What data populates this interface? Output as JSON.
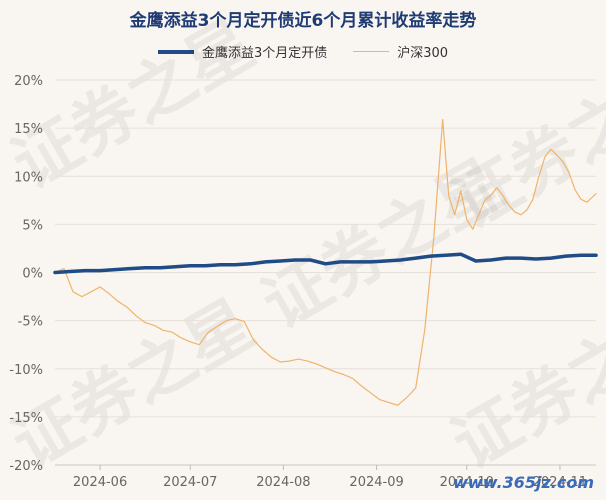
{
  "chart_data": {
    "type": "line",
    "title": "金鹰添益3个月定开债近6个月累计收益率走势",
    "ylabel": "",
    "xlabel": "",
    "ylim": [
      -20,
      20
    ],
    "y_ticks": [
      "20%",
      "15%",
      "10%",
      "5%",
      "0%",
      "-5%",
      "-10%",
      "-15%",
      "-20%"
    ],
    "x_ticks": [
      "2024-06",
      "2024-07",
      "2024-08",
      "2024-09",
      "2024-10",
      "2024-11"
    ],
    "x_tick_days": [
      15,
      45,
      76,
      107,
      137,
      168
    ],
    "legend_position": "top-center",
    "grid": true,
    "series": [
      {
        "name": "金鹰添益3个月定开债",
        "color": "#1f4b86",
        "x": [
          0,
          5,
          10,
          15,
          20,
          25,
          30,
          35,
          40,
          45,
          50,
          55,
          60,
          65,
          70,
          75,
          80,
          85,
          90,
          95,
          100,
          105,
          110,
          115,
          120,
          125,
          130,
          135,
          140,
          145,
          150,
          155,
          160,
          165,
          170,
          175,
          180
        ],
        "y": [
          0.0,
          0.1,
          0.2,
          0.2,
          0.3,
          0.4,
          0.5,
          0.5,
          0.6,
          0.7,
          0.7,
          0.8,
          0.8,
          0.9,
          1.1,
          1.2,
          1.3,
          1.3,
          0.9,
          1.1,
          1.1,
          1.1,
          1.2,
          1.3,
          1.5,
          1.7,
          1.8,
          1.9,
          1.2,
          1.3,
          1.5,
          1.5,
          1.4,
          1.5,
          1.7,
          1.8,
          1.8
        ]
      },
      {
        "name": "沪深300",
        "color": "#f0b36a",
        "x": [
          0,
          3,
          6,
          9,
          12,
          15,
          18,
          21,
          24,
          27,
          30,
          33,
          36,
          39,
          42,
          45,
          48,
          51,
          54,
          57,
          60,
          63,
          66,
          69,
          72,
          75,
          78,
          81,
          84,
          87,
          90,
          93,
          96,
          99,
          102,
          105,
          108,
          111,
          114,
          117,
          120,
          123,
          126,
          129,
          131,
          133,
          135,
          137,
          139,
          141,
          143,
          145,
          147,
          149,
          151,
          153,
          155,
          157,
          159,
          161,
          163,
          165,
          167,
          169,
          171,
          173,
          175,
          177,
          179,
          180
        ],
        "y": [
          0.0,
          0.4,
          -2.0,
          -2.5,
          -2.0,
          -1.5,
          -2.2,
          -3.0,
          -3.6,
          -4.5,
          -5.2,
          -5.5,
          -6.0,
          -6.2,
          -6.8,
          -7.2,
          -7.5,
          -6.2,
          -5.6,
          -5.0,
          -4.8,
          -5.1,
          -7.0,
          -8.0,
          -8.8,
          -9.3,
          -9.2,
          -9.0,
          -9.2,
          -9.5,
          -9.9,
          -10.3,
          -10.6,
          -11.0,
          -11.8,
          -12.5,
          -13.2,
          -13.5,
          -13.8,
          -13.0,
          -12.0,
          -6.0,
          3.5,
          15.9,
          8.0,
          6.0,
          8.5,
          5.5,
          4.5,
          6.0,
          7.5,
          8.0,
          8.8,
          8.0,
          7.0,
          6.3,
          6.0,
          6.5,
          7.6,
          10.0,
          12.0,
          12.8,
          12.2,
          11.5,
          10.4,
          8.6,
          7.6,
          7.3,
          7.9,
          8.2
        ]
      }
    ]
  },
  "watermark": "证券之星",
  "site_watermark": "www.365jz.com"
}
